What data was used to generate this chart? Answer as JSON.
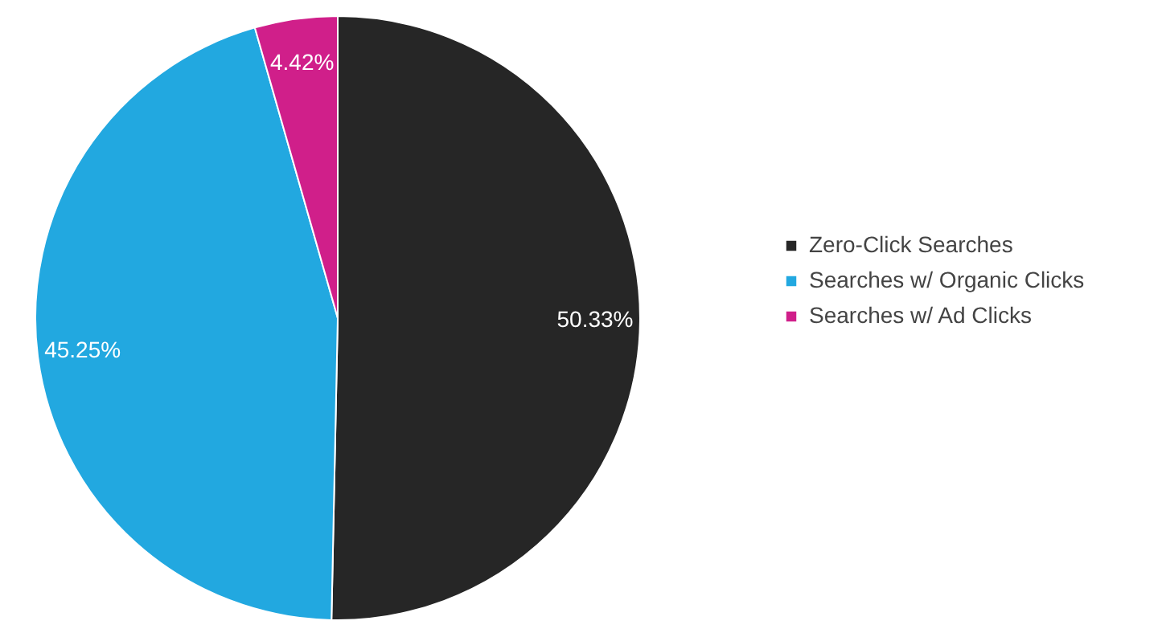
{
  "chart_data": {
    "type": "pie",
    "categories": [
      "Zero-Click Searches",
      "Searches w/ Organic Clicks",
      "Searches w/ Ad Clicks"
    ],
    "values": [
      50.33,
      45.25,
      4.42
    ],
    "colors": [
      "#262626",
      "#22a8e0",
      "#d01f8a"
    ],
    "value_labels": [
      "50.33%",
      "45.25%",
      "4.42%"
    ],
    "legend": "right"
  }
}
